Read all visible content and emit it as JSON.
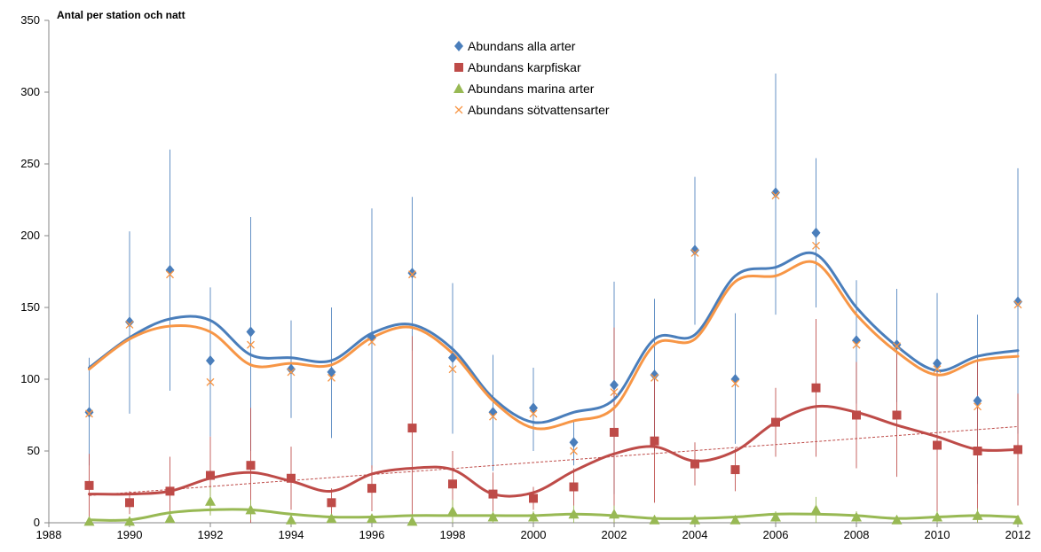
{
  "chart_data": {
    "type": "scatter",
    "title": "Antal per station och natt",
    "xlim": [
      1988,
      2012
    ],
    "ylim": [
      0,
      350
    ],
    "x_ticks": [
      1988,
      1990,
      1992,
      1994,
      1996,
      1998,
      2000,
      2002,
      2004,
      2006,
      2008,
      2010,
      2012
    ],
    "y_ticks": [
      0,
      50,
      100,
      150,
      200,
      250,
      300,
      350
    ],
    "legend_position": "top-center",
    "x": [
      1989,
      1990,
      1991,
      1992,
      1993,
      1994,
      1995,
      1996,
      1997,
      1998,
      1999,
      2000,
      2001,
      2002,
      2003,
      2004,
      2005,
      2006,
      2007,
      2008,
      2009,
      2010,
      2011,
      2012
    ],
    "series": [
      {
        "name": "Abundans alla arter",
        "marker": "diamond",
        "color": "#4a7ebb",
        "values": [
          77,
          140,
          176,
          113,
          133,
          107,
          105,
          129,
          174,
          115,
          77,
          80,
          56,
          96,
          103,
          190,
          100,
          230,
          202,
          127,
          124,
          111,
          85,
          154
        ],
        "err_high": [
          115,
          203,
          260,
          164,
          213,
          141,
          150,
          219,
          227,
          167,
          117,
          108,
          71,
          168,
          156,
          241,
          146,
          313,
          254,
          169,
          163,
          160,
          145,
          247
        ],
        "err_low": [
          40,
          76,
          92,
          60,
          50,
          73,
          59,
          38,
          120,
          62,
          36,
          50,
          40,
          20,
          50,
          138,
          55,
          145,
          150,
          83,
          84,
          63,
          27,
          62
        ],
        "trend": [
          108,
          129,
          142,
          141,
          117,
          115,
          113,
          132,
          138,
          121,
          87,
          70,
          77,
          86,
          128,
          131,
          172,
          178,
          187,
          150,
          123,
          106,
          116,
          120
        ]
      },
      {
        "name": "Abundans karpfiskar",
        "marker": "square",
        "color": "#be4b48",
        "values": [
          26,
          14,
          22,
          33,
          40,
          31,
          14,
          24,
          66,
          27,
          20,
          17,
          25,
          63,
          57,
          41,
          37,
          70,
          94,
          75,
          75,
          54,
          50,
          51
        ],
        "err_high": [
          48,
          22,
          46,
          60,
          80,
          53,
          24,
          40,
          130,
          50,
          35,
          25,
          38,
          136,
          100,
          56,
          52,
          94,
          142,
          112,
          118,
          105,
          112,
          90
        ],
        "err_low": [
          4,
          6,
          0,
          6,
          0,
          9,
          4,
          8,
          0,
          4,
          5,
          9,
          12,
          0,
          14,
          26,
          22,
          46,
          46,
          38,
          32,
          3,
          0,
          12
        ],
        "trend": [
          20,
          20,
          22,
          31,
          35,
          29,
          22,
          34,
          38,
          37,
          20,
          21,
          36,
          48,
          53,
          43,
          50,
          70,
          81,
          77,
          68,
          60,
          51,
          51
        ],
        "linear_trend": {
          "from": [
            1989,
            19
          ],
          "to": [
            2012,
            67
          ]
        }
      },
      {
        "name": "Abundans marina arter",
        "marker": "triangle",
        "color": "#98b954",
        "values": [
          1,
          1,
          3,
          15,
          9,
          2,
          3,
          3,
          1,
          8,
          4,
          4,
          6,
          6,
          2,
          2,
          2,
          4,
          9,
          4,
          2,
          4,
          5,
          2
        ],
        "err_high": [
          3,
          3,
          6,
          25,
          16,
          5,
          6,
          6,
          3,
          16,
          8,
          8,
          12,
          12,
          5,
          4,
          5,
          8,
          18,
          8,
          5,
          8,
          10,
          5
        ],
        "err_low": [
          0,
          0,
          0,
          5,
          2,
          0,
          0,
          0,
          0,
          0,
          0,
          0,
          0,
          0,
          0,
          0,
          0,
          0,
          0,
          0,
          0,
          0,
          0,
          0
        ],
        "trend": [
          2,
          2,
          7,
          9,
          9,
          6,
          4,
          4,
          5,
          5,
          5,
          5,
          6,
          5,
          3,
          3,
          4,
          6,
          6,
          5,
          3,
          4,
          5,
          4
        ]
      },
      {
        "name": "Abundans sötvattensarter",
        "marker": "x",
        "color": "#f79646",
        "values": [
          76,
          138,
          173,
          98,
          124,
          105,
          101,
          126,
          173,
          107,
          74,
          76,
          50,
          91,
          101,
          188,
          97,
          228,
          193,
          124,
          123,
          107,
          81,
          152
        ],
        "trend": [
          107,
          128,
          137,
          133,
          110,
          111,
          110,
          129,
          136,
          118,
          85,
          66,
          71,
          80,
          124,
          128,
          168,
          172,
          181,
          145,
          119,
          103,
          113,
          116
        ]
      }
    ]
  }
}
